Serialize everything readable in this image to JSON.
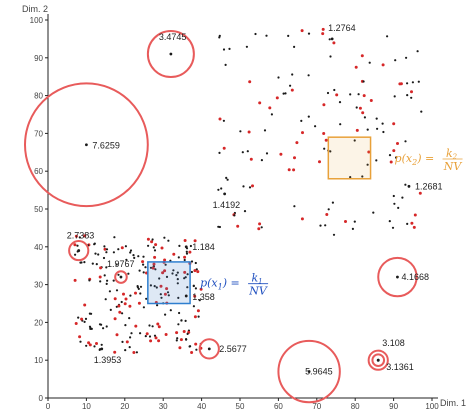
{
  "colors": {
    "axis": "#222222",
    "normal_point": "#1a1a1a",
    "outlier_point": "#d62728",
    "ring": "#e85b5b",
    "formula_blue": "#1f4fbf",
    "formula_orange": "#e8a13a"
  },
  "chart_data": {
    "type": "scatter",
    "title": "",
    "xlabel": "Dim. 1",
    "ylabel": "Dim. 2",
    "xlim": [
      0,
      100
    ],
    "ylim": [
      0,
      100
    ],
    "xticks": [
      "0",
      "10",
      "20",
      "30",
      "40",
      "50",
      "60",
      "70",
      "80",
      "90",
      "100"
    ],
    "yticks": [
      "0",
      "10",
      "20",
      "30",
      "40",
      "50",
      "60",
      "70",
      "80",
      "90",
      "100"
    ],
    "grid": false,
    "annotations": [
      {
        "label": "3.4745",
        "x": 32,
        "y": 91,
        "radius": 6
      },
      {
        "label": "1.2764",
        "x": 74,
        "y": 95,
        "radius": 0
      },
      {
        "label": "7.6259",
        "x": 10,
        "y": 67,
        "radius": 16
      },
      {
        "label": "1.4192",
        "x": 46,
        "y": 54,
        "radius": 0
      },
      {
        "label": "1.2681",
        "x": 94,
        "y": 56,
        "radius": 0
      },
      {
        "label": "2.7383",
        "x": 8,
        "y": 39,
        "radius": 2.5
      },
      {
        "label": "1.184",
        "x": 36,
        "y": 40,
        "radius": 0
      },
      {
        "label": "1.9767",
        "x": 19,
        "y": 32,
        "radius": 1.5
      },
      {
        "label": "4.1668",
        "x": 91,
        "y": 32,
        "radius": 5
      },
      {
        "label": "1.358",
        "x": 36,
        "y": 27,
        "radius": 0
      },
      {
        "label": "2.5677",
        "x": 42,
        "y": 13,
        "radius": 2.5
      },
      {
        "label": "1.3953",
        "x": 14,
        "y": 13,
        "radius": 0
      },
      {
        "label": "3.108",
        "x": 86,
        "y": 10,
        "radius": 2.5
      },
      {
        "label": "3.1361",
        "x": 86,
        "y": 10,
        "radius": 1.5
      },
      {
        "label": "5.9645",
        "x": 68,
        "y": 7,
        "radius": 8
      }
    ],
    "boxes": [
      {
        "name": "dense-cluster-window",
        "x_range": [
          26,
          37
        ],
        "y_range": [
          25,
          36
        ],
        "formula": {
          "left": "p(x",
          "sub": "1",
          "mid": ") = ",
          "num_var": "k",
          "num_sub": "1",
          "den": "NV"
        }
      },
      {
        "name": "sparse-cluster-window",
        "x_range": [
          73,
          84
        ],
        "y_range": [
          58,
          69
        ],
        "formula": {
          "left": "p(x",
          "sub": "2",
          "mid": ") = ",
          "num_var": "k",
          "num_sub": "2",
          "den": "NV"
        }
      }
    ],
    "clusters": [
      {
        "name": "dense-cluster",
        "x_range": [
          7,
          40
        ],
        "y_range": [
          12,
          43
        ],
        "count": 240,
        "outlier_share": 0.3
      },
      {
        "name": "sparse-cluster",
        "x_range": [
          44,
          98
        ],
        "y_range": [
          43,
          98
        ],
        "count": 150,
        "outlier_share": 0.4
      }
    ]
  }
}
